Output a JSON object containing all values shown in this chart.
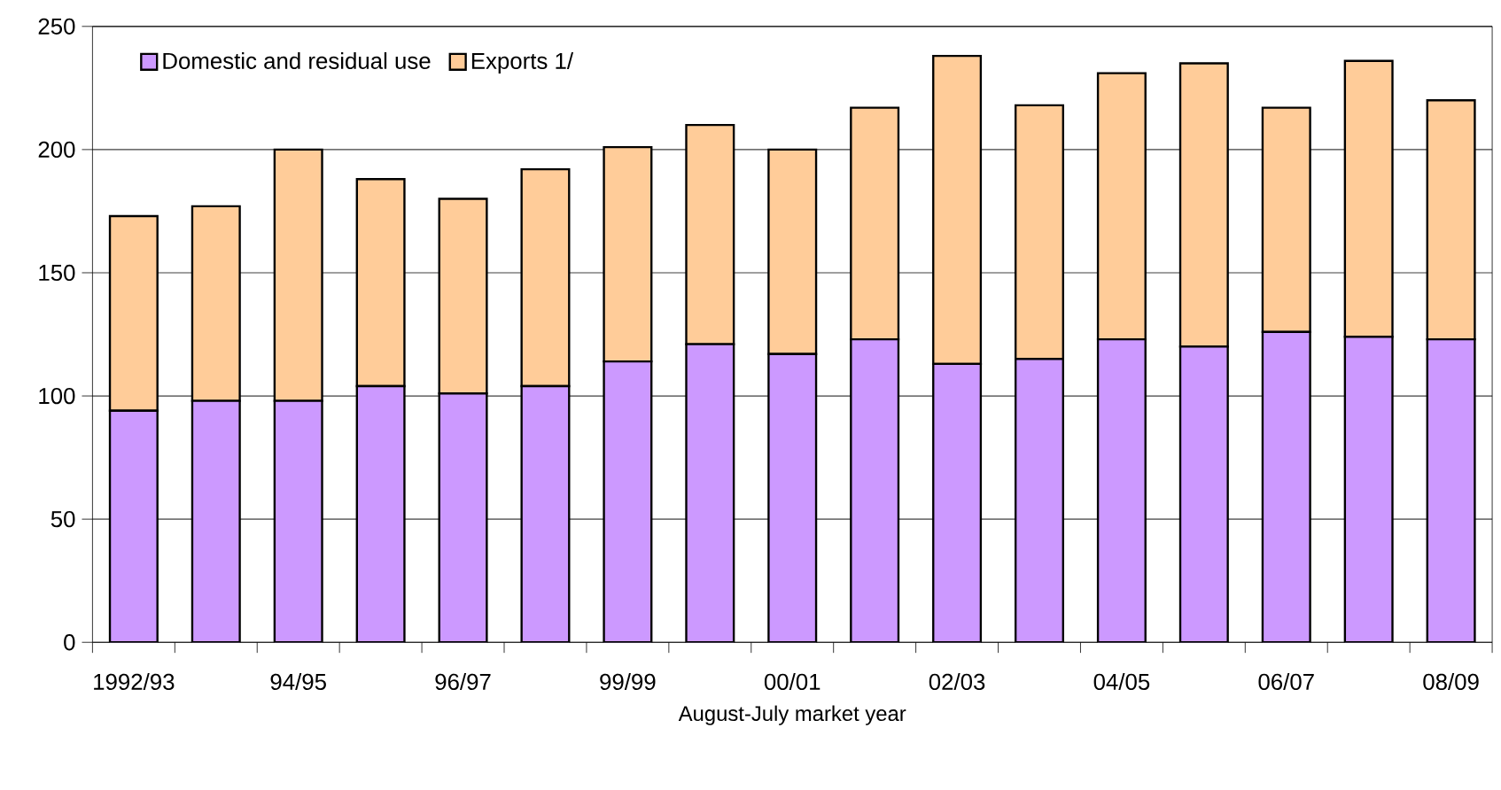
{
  "chart_data": {
    "type": "bar",
    "stacked": true,
    "xlabel": "August-July market year",
    "categories": [
      "1992/93",
      null,
      "94/95",
      null,
      "96/97",
      null,
      "99/99",
      null,
      "00/01",
      null,
      "02/03",
      null,
      "04/05",
      null,
      "06/07",
      null,
      "08/09"
    ],
    "series": [
      {
        "name": "Domestic and residual use",
        "color": "#cc99ff",
        "values": [
          94,
          98,
          98,
          104,
          101,
          104,
          114,
          121,
          117,
          123,
          113,
          115,
          123,
          120,
          126,
          124,
          123
        ]
      },
      {
        "name": "Exports 1/",
        "color": "#ffcc99",
        "values": [
          79,
          79,
          102,
          84,
          79,
          88,
          87,
          89,
          83,
          94,
          125,
          103,
          108,
          115,
          91,
          112,
          97
        ]
      }
    ],
    "ylim": [
      0,
      250
    ],
    "yticks": [
      0,
      50,
      100,
      150,
      200,
      250
    ],
    "grid": "y",
    "legend": "top left"
  }
}
